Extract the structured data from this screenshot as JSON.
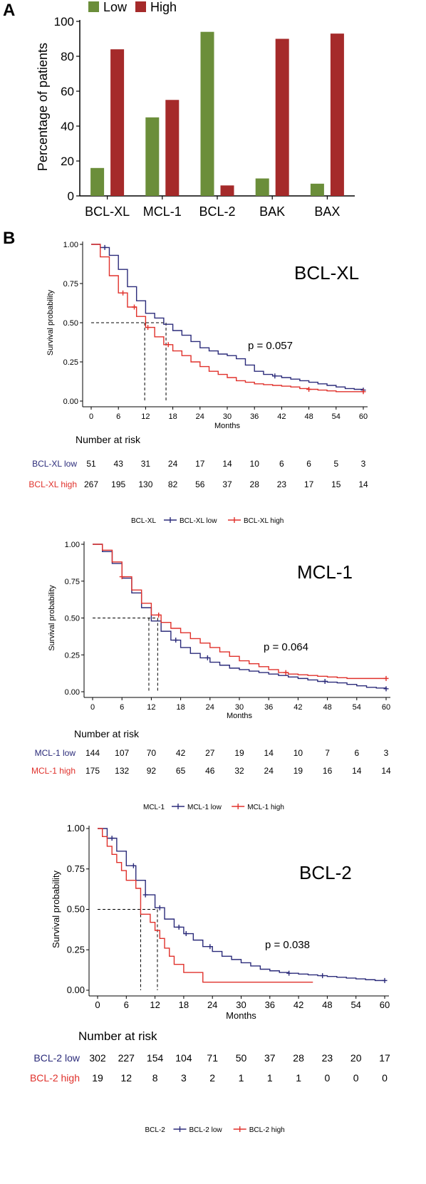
{
  "chart_data": [
    {
      "id": "bar",
      "panel_label": "A",
      "type": "bar",
      "categories": [
        "BCL-XL",
        "MCL-1",
        "BCL-2",
        "BAK",
        "BAX"
      ],
      "series": [
        {
          "name": "Low",
          "color": "#6b8e3a",
          "values": [
            16,
            45,
            94,
            10,
            7
          ]
        },
        {
          "name": "High",
          "color": "#a52a2a",
          "values": [
            84,
            55,
            6,
            90,
            93
          ]
        }
      ],
      "ylabel": "Percentage of patients",
      "ylim": [
        0,
        100
      ],
      "yticks": [
        0,
        20,
        40,
        60,
        80,
        100
      ],
      "legend_position": "top"
    },
    {
      "id": "km1",
      "panel_label": "B",
      "type": "line",
      "title": "BCL-XL",
      "xlabel": "Months",
      "ylabel": "Survival probability",
      "xlim": [
        0,
        60
      ],
      "ylim": [
        0,
        1
      ],
      "xticks": [
        0,
        6,
        12,
        18,
        24,
        30,
        36,
        42,
        48,
        54,
        60
      ],
      "yticks": [
        "0.00",
        "0.25",
        "0.50",
        "0.75",
        "1.00"
      ],
      "pvalue": "p = 0.057",
      "medians": [
        11.8,
        16.5
      ],
      "legend_title": "BCL-XL",
      "series": [
        {
          "name": "BCL-XL low",
          "color": "#2b2b7a",
          "x": [
            0,
            2,
            4,
            6,
            8,
            10,
            12,
            14,
            16,
            18,
            20,
            22,
            24,
            26,
            28,
            30,
            32,
            34,
            36,
            38,
            40,
            42,
            44,
            46,
            48,
            50,
            52,
            54,
            56,
            58,
            60
          ],
          "y": [
            1.0,
            0.98,
            0.93,
            0.84,
            0.73,
            0.64,
            0.56,
            0.53,
            0.49,
            0.45,
            0.42,
            0.38,
            0.34,
            0.32,
            0.3,
            0.29,
            0.27,
            0.23,
            0.19,
            0.17,
            0.16,
            0.15,
            0.14,
            0.13,
            0.12,
            0.11,
            0.1,
            0.09,
            0.08,
            0.075,
            0.07
          ],
          "censor_x": [
            3,
            40.5,
            60
          ],
          "risk": [
            51,
            43,
            31,
            24,
            17,
            14,
            10,
            6,
            6,
            5,
            3
          ]
        },
        {
          "name": "BCL-XL high",
          "color": "#e0312b",
          "x": [
            0,
            2,
            4,
            6,
            8,
            10,
            12,
            14,
            16,
            18,
            20,
            22,
            24,
            26,
            28,
            30,
            32,
            34,
            36,
            38,
            40,
            42,
            44,
            46,
            48,
            50,
            52,
            54,
            56,
            58,
            60
          ],
          "y": [
            1.0,
            0.92,
            0.8,
            0.69,
            0.6,
            0.54,
            0.47,
            0.41,
            0.36,
            0.32,
            0.29,
            0.25,
            0.22,
            0.19,
            0.17,
            0.15,
            0.13,
            0.12,
            0.11,
            0.105,
            0.1,
            0.095,
            0.09,
            0.08,
            0.075,
            0.07,
            0.065,
            0.06,
            0.06,
            0.06,
            0.06
          ],
          "censor_x": [
            7,
            9.5,
            12.5,
            17,
            48,
            60
          ],
          "risk": [
            267,
            195,
            130,
            82,
            56,
            37,
            28,
            23,
            17,
            15,
            14
          ]
        }
      ],
      "risk_title": "Number at risk"
    },
    {
      "id": "km2",
      "type": "line",
      "title": "MCL-1",
      "xlabel": "Months",
      "ylabel": "Survival probability",
      "xlim": [
        0,
        60
      ],
      "ylim": [
        0,
        1
      ],
      "xticks": [
        0,
        6,
        12,
        18,
        24,
        30,
        36,
        42,
        48,
        54,
        60
      ],
      "yticks": [
        "0.00",
        "0.25",
        "0.50",
        "0.75",
        "1.00"
      ],
      "pvalue": "p = 0.064",
      "medians": [
        11.5,
        13.3
      ],
      "legend_title": "MCL-1",
      "series": [
        {
          "name": "MCL-1 low",
          "color": "#2b2b7a",
          "x": [
            0,
            2,
            4,
            6,
            8,
            10,
            12,
            14,
            16,
            18,
            20,
            22,
            24,
            26,
            28,
            30,
            32,
            34,
            36,
            38,
            40,
            42,
            44,
            46,
            48,
            50,
            52,
            54,
            56,
            58,
            60
          ],
          "y": [
            1.0,
            0.95,
            0.87,
            0.77,
            0.67,
            0.57,
            0.48,
            0.41,
            0.35,
            0.3,
            0.26,
            0.23,
            0.2,
            0.18,
            0.16,
            0.15,
            0.14,
            0.13,
            0.12,
            0.11,
            0.1,
            0.09,
            0.08,
            0.07,
            0.065,
            0.06,
            0.05,
            0.04,
            0.03,
            0.025,
            0.02
          ],
          "censor_x": [
            17,
            23.5,
            47.5,
            60
          ],
          "risk": [
            144,
            107,
            70,
            42,
            27,
            19,
            14,
            10,
            7,
            6,
            3
          ]
        },
        {
          "name": "MCL-1 high",
          "color": "#e0312b",
          "x": [
            0,
            2,
            4,
            6,
            8,
            10,
            12,
            14,
            16,
            18,
            20,
            22,
            24,
            26,
            28,
            30,
            32,
            34,
            36,
            38,
            40,
            42,
            44,
            46,
            48,
            50,
            52,
            54,
            56,
            58,
            60
          ],
          "y": [
            1.0,
            0.96,
            0.88,
            0.78,
            0.69,
            0.6,
            0.52,
            0.47,
            0.43,
            0.4,
            0.36,
            0.33,
            0.3,
            0.27,
            0.24,
            0.21,
            0.19,
            0.17,
            0.15,
            0.13,
            0.12,
            0.115,
            0.11,
            0.105,
            0.1,
            0.095,
            0.09,
            0.09,
            0.09,
            0.09,
            0.09
          ],
          "censor_x": [
            6,
            13.5,
            39.5,
            60
          ],
          "risk": [
            175,
            132,
            92,
            65,
            46,
            32,
            24,
            19,
            16,
            14,
            14
          ]
        }
      ],
      "risk_title": "Number at risk"
    },
    {
      "id": "km3",
      "type": "line",
      "title": "BCL-2",
      "xlabel": "Months",
      "ylabel": "Survival probability",
      "xlim": [
        0,
        60
      ],
      "ylim": [
        0,
        1
      ],
      "xticks": [
        0,
        6,
        12,
        18,
        24,
        30,
        36,
        42,
        48,
        54,
        60
      ],
      "yticks": [
        "0.00",
        "0.25",
        "0.50",
        "0.75",
        "1.00"
      ],
      "pvalue": "p = 0.038",
      "medians": [
        9,
        12.5
      ],
      "legend_title": "BCL-2",
      "series": [
        {
          "name": "BCL-2 low",
          "color": "#2b2b7a",
          "x": [
            0,
            2,
            4,
            6,
            8,
            10,
            12,
            14,
            16,
            18,
            20,
            22,
            24,
            26,
            28,
            30,
            32,
            34,
            36,
            38,
            40,
            42,
            44,
            46,
            48,
            50,
            52,
            54,
            56,
            58,
            60
          ],
          "y": [
            1.0,
            0.94,
            0.86,
            0.77,
            0.68,
            0.59,
            0.51,
            0.44,
            0.39,
            0.35,
            0.31,
            0.27,
            0.24,
            0.21,
            0.19,
            0.17,
            0.15,
            0.13,
            0.12,
            0.11,
            0.105,
            0.1,
            0.095,
            0.09,
            0.085,
            0.08,
            0.075,
            0.07,
            0.065,
            0.06,
            0.06
          ],
          "censor_x": [
            3,
            7.5,
            10,
            13,
            17,
            18.5,
            23.5,
            40,
            47,
            60
          ],
          "risk": [
            302,
            227,
            154,
            104,
            71,
            50,
            37,
            28,
            23,
            20,
            17
          ]
        },
        {
          "name": "BCL-2 high",
          "color": "#e0312b",
          "x": [
            0,
            1,
            2,
            3,
            4,
            5,
            6,
            8,
            9,
            11,
            12,
            13,
            14,
            15,
            16,
            18,
            22,
            24,
            45
          ],
          "y": [
            1.0,
            0.95,
            0.89,
            0.84,
            0.79,
            0.74,
            0.68,
            0.63,
            0.47,
            0.42,
            0.37,
            0.32,
            0.26,
            0.21,
            0.16,
            0.11,
            0.05,
            0.05,
            0.05
          ],
          "censor_x": [],
          "step_end": 45,
          "risk": [
            19,
            12,
            8,
            3,
            2,
            1,
            1,
            1,
            0,
            0,
            0
          ]
        }
      ],
      "risk_title": "Number at risk"
    }
  ]
}
